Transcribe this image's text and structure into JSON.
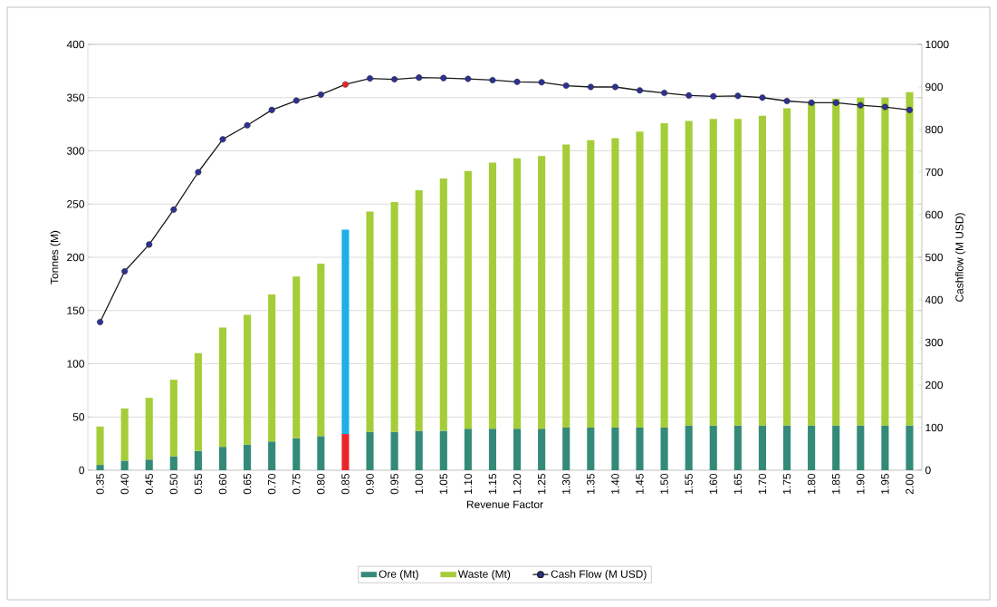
{
  "chart_data": {
    "type": "bar",
    "xlabel": "Revenue Factor",
    "ylabel": "Tonnes (M)",
    "y2label": "Cashflow (M USD)",
    "categories": [
      "0.35",
      "0.40",
      "0.45",
      "0.50",
      "0.55",
      "0.60",
      "0.65",
      "0.70",
      "0.75",
      "0.80",
      "0.85",
      "0.90",
      "0.95",
      "1.00",
      "1.05",
      "1.10",
      "1.15",
      "1.20",
      "1.25",
      "1.30",
      "1.35",
      "1.40",
      "1.45",
      "1.50",
      "1.55",
      "1.60",
      "1.65",
      "1.70",
      "1.75",
      "1.80",
      "1.85",
      "1.90",
      "1.95",
      "2.00"
    ],
    "stacked": true,
    "grid": "y",
    "legend": "bottom",
    "ylim": [
      0,
      400
    ],
    "yticks": [
      0,
      50,
      100,
      150,
      200,
      250,
      300,
      350,
      400
    ],
    "y2lim": [
      0,
      1000
    ],
    "y2ticks": [
      0,
      100,
      200,
      300,
      400,
      500,
      600,
      700,
      800,
      900,
      1000
    ],
    "series": [
      {
        "name": "Ore (Mt)",
        "type": "bar",
        "color": "#348a78",
        "colors": [
          "#348a78",
          "#348a78",
          "#348a78",
          "#348a78",
          "#348a78",
          "#348a78",
          "#348a78",
          "#348a78",
          "#348a78",
          "#348a78",
          "#e8262a",
          "#348a78",
          "#348a78",
          "#348a78",
          "#348a78",
          "#348a78",
          "#348a78",
          "#348a78",
          "#348a78",
          "#348a78",
          "#348a78",
          "#348a78",
          "#348a78",
          "#348a78",
          "#348a78",
          "#348a78",
          "#348a78",
          "#348a78",
          "#348a78",
          "#348a78",
          "#348a78",
          "#348a78",
          "#348a78",
          "#348a78"
        ],
        "values": [
          5,
          9,
          10,
          13,
          18,
          22,
          24,
          27,
          30,
          32,
          34,
          36,
          36,
          37,
          37,
          39,
          39,
          39,
          39,
          40,
          40,
          40,
          40,
          40,
          42,
          42,
          42,
          42,
          42,
          42,
          42,
          42,
          42,
          42
        ]
      },
      {
        "name": "Waste (Mt)",
        "type": "bar",
        "color": "#a5cd39",
        "colors": [
          "#a5cd39",
          "#a5cd39",
          "#a5cd39",
          "#a5cd39",
          "#a5cd39",
          "#a5cd39",
          "#a5cd39",
          "#a5cd39",
          "#a5cd39",
          "#a5cd39",
          "#1eaee8",
          "#a5cd39",
          "#a5cd39",
          "#a5cd39",
          "#a5cd39",
          "#a5cd39",
          "#a5cd39",
          "#a5cd39",
          "#a5cd39",
          "#a5cd39",
          "#a5cd39",
          "#a5cd39",
          "#a5cd39",
          "#a5cd39",
          "#a5cd39",
          "#a5cd39",
          "#a5cd39",
          "#a5cd39",
          "#a5cd39",
          "#a5cd39",
          "#a5cd39",
          "#a5cd39",
          "#a5cd39",
          "#a5cd39"
        ],
        "values": [
          36,
          49,
          58,
          72,
          92,
          112,
          122,
          138,
          152,
          162,
          192,
          207,
          216,
          226,
          237,
          242,
          250,
          254,
          256,
          266,
          270,
          272,
          278,
          286,
          286,
          288,
          288,
          291,
          298,
          304,
          307,
          308,
          308,
          313
        ]
      },
      {
        "name": "Cash Flow (M USD)",
        "type": "line",
        "axis": "y2",
        "marker": "circle",
        "color": "#1a1a1a",
        "colors": [
          "#2e3192",
          "#2e3192",
          "#2e3192",
          "#2e3192",
          "#2e3192",
          "#2e3192",
          "#2e3192",
          "#2e3192",
          "#2e3192",
          "#2e3192",
          "#e8262a",
          "#2e3192",
          "#2e3192",
          "#2e3192",
          "#2e3192",
          "#2e3192",
          "#2e3192",
          "#2e3192",
          "#2e3192",
          "#2e3192",
          "#2e3192",
          "#2e3192",
          "#2e3192",
          "#2e3192",
          "#2e3192",
          "#2e3192",
          "#2e3192",
          "#2e3192",
          "#2e3192",
          "#2e3192",
          "#2e3192",
          "#2e3192",
          "#2e3192",
          "#2e3192"
        ],
        "values": [
          348,
          467,
          530,
          612,
          700,
          777,
          810,
          846,
          868,
          882,
          906,
          920,
          918,
          922,
          921,
          919,
          916,
          912,
          911,
          903,
          900,
          900,
          892,
          886,
          880,
          878,
          879,
          875,
          867,
          863,
          863,
          857,
          853,
          846
        ]
      }
    ]
  }
}
